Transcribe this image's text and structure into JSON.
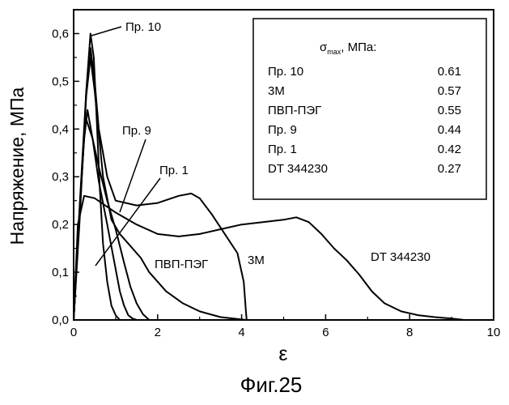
{
  "chart_data": {
    "type": "line",
    "title": "",
    "xlabel": "ε",
    "ylabel": "Напряжение, МПа",
    "xlim": [
      0,
      10
    ],
    "ylim": [
      0,
      0.65
    ],
    "x_ticks": [
      0,
      2,
      4,
      6,
      8,
      10
    ],
    "x_tick_labels": [
      "0",
      "2",
      "4",
      "6",
      "8",
      "10"
    ],
    "y_ticks": [
      0,
      0.1,
      0.2,
      0.3,
      0.4,
      0.5,
      0.6
    ],
    "y_tick_labels": [
      "0,0",
      "0,1",
      "0,2",
      "0,3",
      "0,4",
      "0,5",
      "0,6"
    ],
    "grid": false,
    "series": [
      {
        "name": "Пр. 10",
        "x": [
          0,
          0.15,
          0.3,
          0.4,
          0.48,
          0.55,
          0.62,
          0.7,
          0.8,
          0.9,
          1.0,
          1.1
        ],
        "y": [
          0,
          0.22,
          0.48,
          0.6,
          0.55,
          0.42,
          0.28,
          0.16,
          0.08,
          0.03,
          0.01,
          0
        ]
      },
      {
        "name": "3М",
        "x": [
          0,
          0.15,
          0.3,
          0.4,
          0.5,
          0.6,
          0.8,
          1.0,
          1.5,
          2.0,
          2.5,
          2.8,
          3.0,
          3.3,
          3.6,
          3.9,
          4.05,
          4.1,
          4.12
        ],
        "y": [
          0,
          0.25,
          0.48,
          0.57,
          0.5,
          0.4,
          0.3,
          0.25,
          0.24,
          0.245,
          0.26,
          0.265,
          0.255,
          0.22,
          0.18,
          0.14,
          0.08,
          0.02,
          0
        ]
      },
      {
        "name": "ПВП-ПЭГ",
        "x": [
          0,
          0.15,
          0.3,
          0.4,
          0.5,
          0.7,
          0.9,
          1.1,
          1.3,
          1.6,
          1.8,
          2.2,
          2.6,
          3.0,
          3.5,
          4.0,
          4.1
        ],
        "y": [
          0,
          0.24,
          0.47,
          0.55,
          0.48,
          0.3,
          0.21,
          0.18,
          0.16,
          0.13,
          0.1,
          0.06,
          0.035,
          0.018,
          0.006,
          0.001,
          0
        ]
      },
      {
        "name": "Пр. 9",
        "x": [
          0,
          0.12,
          0.25,
          0.33,
          0.45,
          0.6,
          0.8,
          0.95,
          1.1,
          1.2,
          1.3,
          1.4,
          1.5
        ],
        "y": [
          0,
          0.2,
          0.38,
          0.44,
          0.38,
          0.29,
          0.2,
          0.13,
          0.06,
          0.03,
          0.01,
          0.003,
          0
        ]
      },
      {
        "name": "Пр. 1",
        "x": [
          0,
          0.12,
          0.25,
          0.3,
          0.45,
          0.6,
          0.8,
          1.0,
          1.2,
          1.35,
          1.5,
          1.65,
          1.8
        ],
        "y": [
          0,
          0.2,
          0.38,
          0.42,
          0.38,
          0.32,
          0.25,
          0.19,
          0.12,
          0.07,
          0.035,
          0.012,
          0
        ]
      },
      {
        "name": "DT 344230",
        "x": [
          0,
          0.1,
          0.25,
          0.5,
          1.0,
          1.5,
          2.0,
          2.5,
          3.0,
          3.5,
          4.0,
          4.5,
          5.0,
          5.3,
          5.6,
          5.9,
          6.2,
          6.5,
          6.8,
          7.1,
          7.4,
          7.8,
          8.2,
          8.6,
          9.0,
          9.3
        ],
        "y": [
          0,
          0.2,
          0.26,
          0.255,
          0.225,
          0.2,
          0.18,
          0.175,
          0.18,
          0.19,
          0.2,
          0.205,
          0.21,
          0.215,
          0.205,
          0.18,
          0.15,
          0.125,
          0.095,
          0.06,
          0.035,
          0.018,
          0.01,
          0.006,
          0.003,
          0
        ]
      }
    ],
    "annotations": [
      {
        "text": "Пр. 10"
      },
      {
        "text": "Пр. 9"
      },
      {
        "text": "Пр. 1"
      },
      {
        "text": "ПВП-ПЭГ"
      },
      {
        "text": "3М"
      },
      {
        "text": "DT 344230"
      }
    ],
    "legend": {
      "position": "top-right",
      "header": "σmax, МПа:",
      "header_symbol": "σ",
      "header_sub": "max",
      "header_rest": ", МПа:",
      "rows": [
        {
          "label": "Пр. 10",
          "value": "0.61"
        },
        {
          "label": "3М",
          "value": "0.57"
        },
        {
          "label": "ПВП-ПЭГ",
          "value": "0.55"
        },
        {
          "label": "Пр. 9",
          "value": "0.44"
        },
        {
          "label": "Пр. 1",
          "value": "0.42"
        },
        {
          "label": "DT 344230",
          "value": "0.27"
        }
      ]
    }
  },
  "caption": "Фиг.25"
}
